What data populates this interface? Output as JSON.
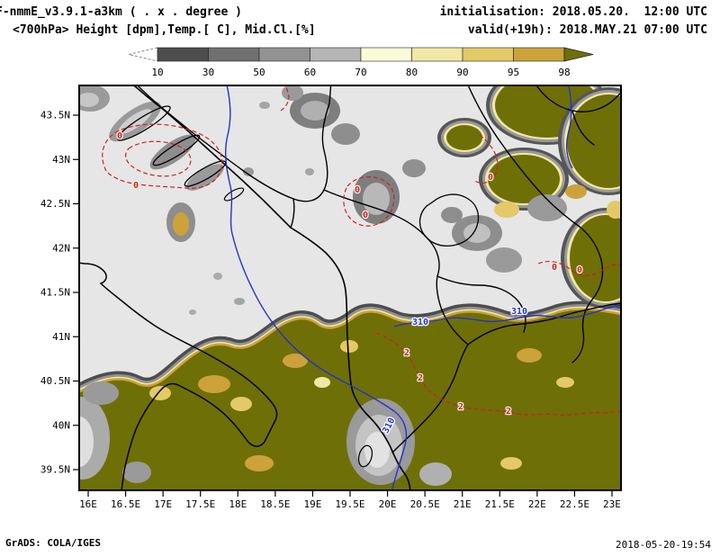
{
  "header": {
    "line1_left": "F-nmmE_v3.9.1-a3km ( . x . degree )",
    "line1_right": "initialisation: 2018.05.20.  12:00 UTC",
    "line2_left": "<700hPa> Height [dpm],Temp.[ C], Mid.Cl.[%]",
    "line2_right": "valid(+19h): 2018.MAY.21 07:00 UTC"
  },
  "colorbar": {
    "ticks": [
      "10",
      "30",
      "50",
      "60",
      "70",
      "80",
      "90",
      "95",
      "98"
    ],
    "segment_colors": [
      "#4d4d4d",
      "#707070",
      "#929292",
      "#b5b5b5",
      "#fbfbd8",
      "#f2e8a6",
      "#e3c967",
      "#cda23a"
    ],
    "below_min_color": "#ffffff",
    "above_max_color": "#6f6f08"
  },
  "map": {
    "lat_labels": [
      "43.5N",
      "43N",
      "42.5N",
      "42N",
      "41.5N",
      "41N",
      "40.5N",
      "40N",
      "39.5N"
    ],
    "lon_labels": [
      "16E",
      "16.5E",
      "17E",
      "17.5E",
      "18E",
      "18.5E",
      "19E",
      "19.5E",
      "20E",
      "20.5E",
      "21E",
      "21.5E",
      "22E",
      "22.5E",
      "23E"
    ],
    "contours": {
      "height_label": "310",
      "zero_label": "0",
      "two_label": "2"
    },
    "colors": {
      "background": "#e6e6e6",
      "coastline": "#000000",
      "height_contour": "#2233cc",
      "temp_contour": "#cc2222",
      "cloud_max": "#6f6f08"
    }
  },
  "footer": {
    "left": "GrADS: COLA/IGES",
    "right": "2018-05-20-19:54"
  }
}
